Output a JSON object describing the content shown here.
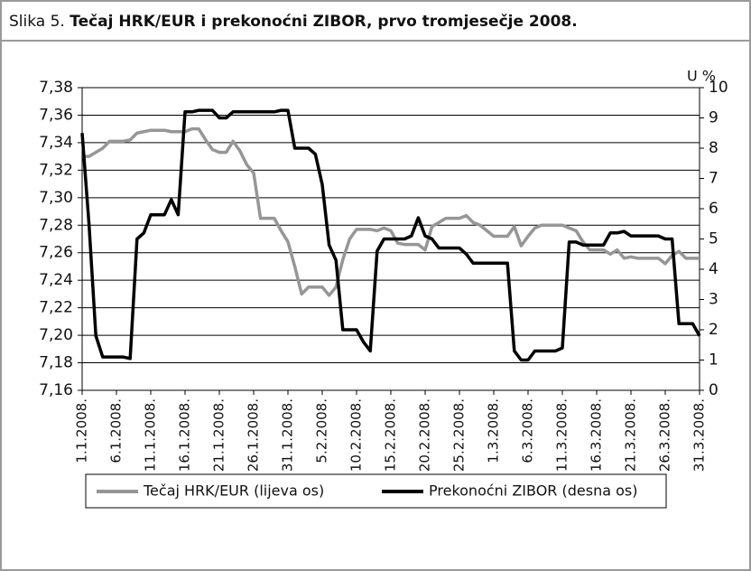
{
  "chart_data": {
    "type": "line",
    "figure_label": "Slika 5.",
    "title": "Tečaj HRK/EUR i prekonoćni ZIBOR, prvo tromjesečje 2008.",
    "y2_label": "U %",
    "categories": [
      "1.1.2008.",
      null,
      null,
      null,
      null,
      "6.1.2008.",
      null,
      null,
      null,
      null,
      "11.1.2008.",
      null,
      null,
      null,
      null,
      "16.1.2008.",
      null,
      null,
      null,
      null,
      "21.1.2008.",
      null,
      null,
      null,
      null,
      "26.1.2008.",
      null,
      null,
      null,
      null,
      "31.1.2008.",
      null,
      null,
      null,
      null,
      "5.2.2008.",
      null,
      null,
      null,
      null,
      "10.2.2008.",
      null,
      null,
      null,
      null,
      "15.2.2008.",
      null,
      null,
      null,
      null,
      "20.2.2008.",
      null,
      null,
      null,
      null,
      "25.2.2008.",
      null,
      null,
      null,
      null,
      "1.3.2008.",
      null,
      null,
      null,
      null,
      "6.3.2008.",
      null,
      null,
      null,
      null,
      "11.3.2008.",
      null,
      null,
      null,
      null,
      "16.3.2008.",
      null,
      null,
      null,
      null,
      "21.3.2008.",
      null,
      null,
      null,
      null,
      "26.3.2008.",
      null,
      null,
      null,
      null,
      "31.3.2008."
    ],
    "series": [
      {
        "name": "Tečaj HRK/EUR (lijeva os)",
        "color": "#969696",
        "axis": "y",
        "values": [
          7.33,
          7.33,
          7.333,
          7.336,
          7.341,
          7.341,
          7.341,
          7.342,
          7.347,
          7.348,
          7.349,
          7.349,
          7.349,
          7.348,
          7.348,
          7.348,
          7.35,
          7.35,
          7.342,
          7.335,
          7.333,
          7.333,
          7.341,
          7.334,
          7.324,
          7.318,
          7.285,
          7.285,
          7.285,
          7.276,
          7.268,
          7.25,
          7.23,
          7.235,
          7.235,
          7.235,
          7.229,
          7.235,
          7.255,
          7.27,
          7.277,
          7.277,
          7.277,
          7.276,
          7.278,
          7.276,
          7.267,
          7.266,
          7.266,
          7.266,
          7.262,
          7.279,
          7.282,
          7.285,
          7.285,
          7.285,
          7.287,
          7.282,
          7.28,
          7.276,
          7.272,
          7.272,
          7.272,
          7.279,
          7.265,
          7.272,
          7.278,
          7.28,
          7.28,
          7.28,
          7.28,
          7.278,
          7.276,
          7.268,
          7.262,
          7.262,
          7.262,
          7.259,
          7.262,
          7.256,
          7.257,
          7.256,
          7.256,
          7.256,
          7.256,
          7.252,
          7.258,
          7.261,
          7.256,
          7.256,
          7.256
        ]
      },
      {
        "name": "Prekonoćni ZIBOR (desna os)",
        "color": "#000000",
        "axis": "y2",
        "values": [
          8.5,
          5.5,
          1.8,
          1.1,
          1.1,
          1.1,
          1.1,
          1.05,
          5.0,
          5.2,
          5.8,
          5.8,
          5.8,
          6.3,
          5.8,
          9.2,
          9.2,
          9.25,
          9.25,
          9.25,
          9.0,
          9.0,
          9.2,
          9.2,
          9.2,
          9.2,
          9.2,
          9.2,
          9.2,
          9.25,
          9.25,
          8.0,
          8.0,
          8.0,
          7.8,
          6.8,
          4.8,
          4.3,
          2.0,
          2.0,
          2.0,
          1.6,
          1.3,
          4.6,
          5.0,
          5.0,
          5.0,
          5.0,
          5.1,
          5.7,
          5.1,
          5.0,
          4.7,
          4.7,
          4.7,
          4.7,
          4.5,
          4.2,
          4.2,
          4.2,
          4.2,
          4.2,
          4.2,
          1.3,
          1.0,
          1.0,
          1.3,
          1.3,
          1.3,
          1.3,
          1.4,
          4.9,
          4.9,
          4.8,
          4.8,
          4.8,
          4.8,
          5.2,
          5.2,
          5.25,
          5.1,
          5.1,
          5.1,
          5.1,
          5.1,
          5.0,
          5.0,
          2.2,
          2.2,
          2.2,
          1.8
        ]
      }
    ],
    "ylim": [
      7.16,
      7.38
    ],
    "yticks": [
      {
        "value": 7.16,
        "label": "7,16"
      },
      {
        "value": 7.18,
        "label": "7,18"
      },
      {
        "value": 7.2,
        "label": "7,20"
      },
      {
        "value": 7.22,
        "label": "7,22"
      },
      {
        "value": 7.24,
        "label": "7,24"
      },
      {
        "value": 7.26,
        "label": "7,26"
      },
      {
        "value": 7.28,
        "label": "7,28"
      },
      {
        "value": 7.3,
        "label": "7,30"
      },
      {
        "value": 7.32,
        "label": "7,32"
      },
      {
        "value": 7.34,
        "label": "7,34"
      },
      {
        "value": 7.36,
        "label": "7,36"
      },
      {
        "value": 7.38,
        "label": "7,38"
      }
    ],
    "y2lim": [
      0,
      10
    ],
    "y2ticks": [
      0,
      1,
      2,
      3,
      4,
      5,
      6,
      7,
      8,
      9,
      10
    ],
    "grid": true,
    "legend": "bottom"
  }
}
